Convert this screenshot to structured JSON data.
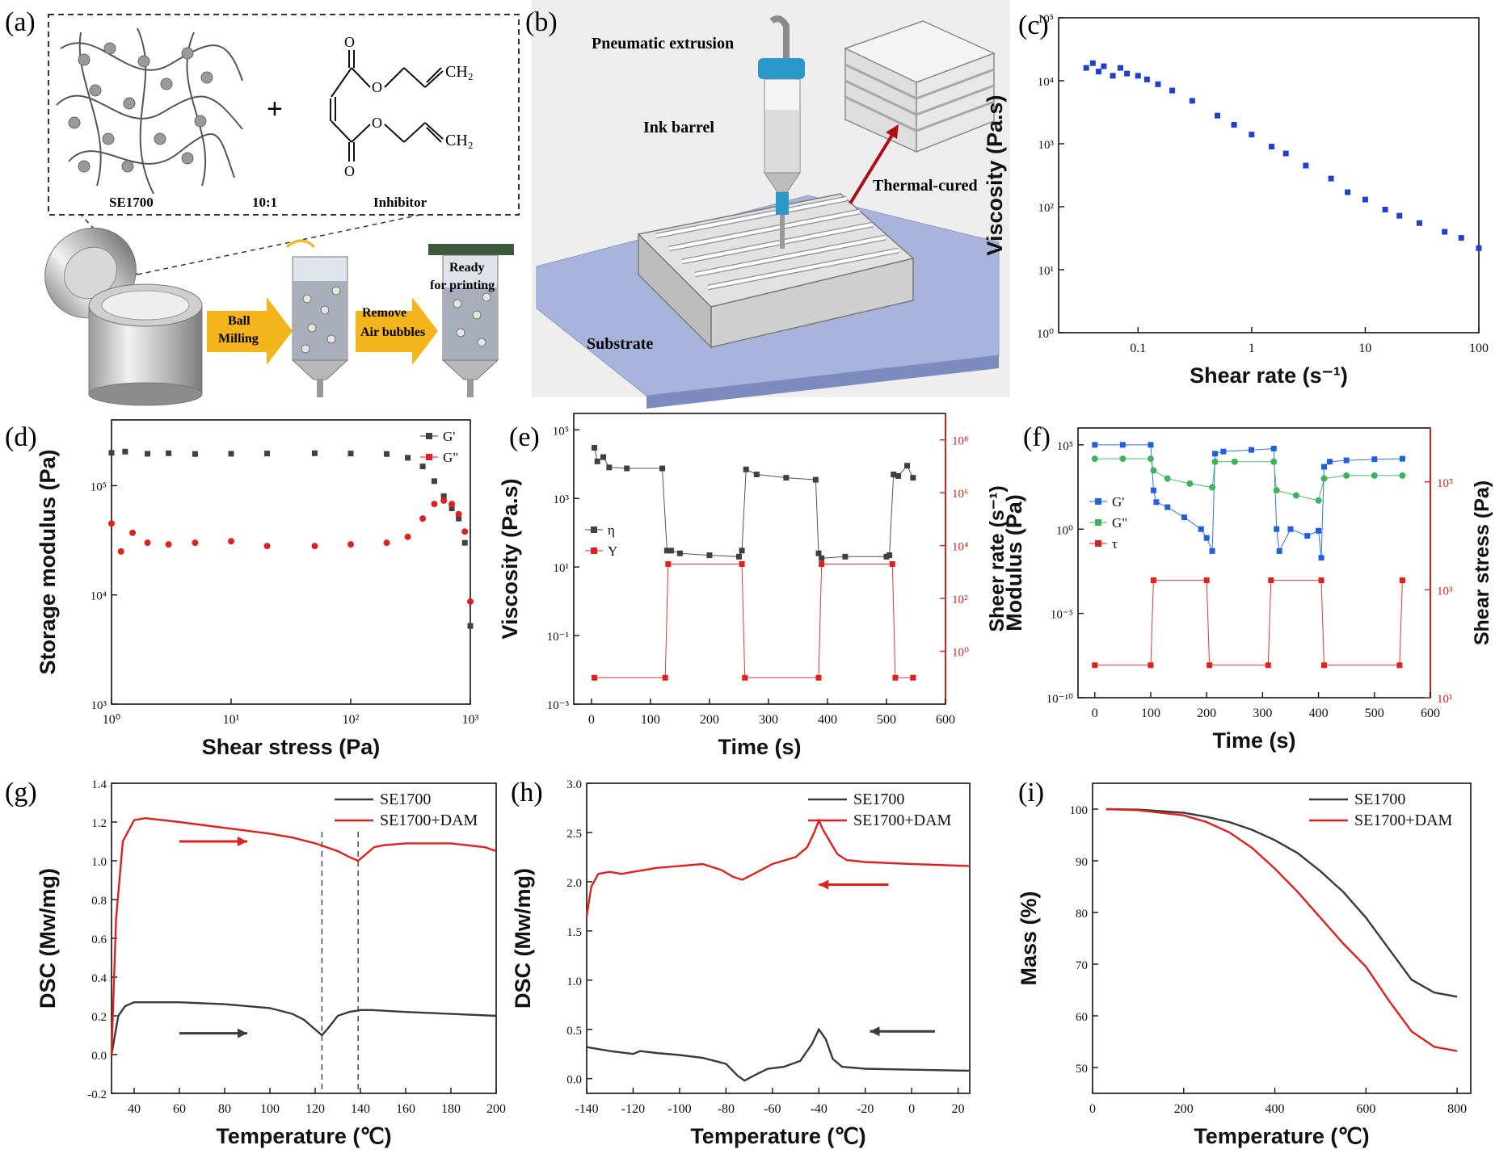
{
  "panels": {
    "a": {
      "letter": "(a)",
      "polymer_label": "SE1700",
      "ratio_label": "10:1",
      "inhibitor_label": "Inhibitor",
      "plus": "+",
      "o1": "O",
      "o2": "O",
      "o3": "O",
      "o4": "O",
      "ch2_top": "CH₂",
      "ch2_bottom": "CH₂",
      "arrow1": [
        "Ball",
        "Milling"
      ],
      "arrow2": [
        "Remove",
        "Air bubbles"
      ],
      "ready": [
        "Ready",
        "for printing"
      ]
    },
    "b": {
      "letter": "(b)",
      "pneumatic": "Pneumatic extrusion",
      "barrel": "Ink barrel",
      "thermal": "Thermal-cured",
      "substrate": "Substrate"
    },
    "c": {
      "letter": "(c)"
    },
    "d": {
      "letter": "(d)"
    },
    "e": {
      "letter": "(e)"
    },
    "f": {
      "letter": "(f)"
    },
    "g": {
      "letter": "(g)"
    },
    "h": {
      "letter": "(h)"
    },
    "i": {
      "letter": "(i)"
    }
  },
  "colors": {
    "black_series": "#404040",
    "red_series": "#e0201c",
    "blue_series": "#1f5fe0",
    "green_series": "#3cb45a",
    "right_axis": "#e0201c"
  },
  "chart_data": [
    {
      "id": "c",
      "type": "scatter",
      "xlabel": "Shear rate (s⁻¹)",
      "ylabel": "Viscosity (Pa.s)",
      "xscale": "log",
      "yscale": "log",
      "xlim": [
        0.02,
        100
      ],
      "ylim": [
        1,
        100000
      ],
      "xticks": [
        0.1,
        1,
        10,
        100
      ],
      "xtick_labels": [
        "0.1",
        "1",
        "10",
        "100"
      ],
      "yticks": [
        1,
        10,
        100,
        1000,
        10000,
        100000
      ],
      "ytick_labels": [
        "10⁰",
        "10¹",
        "10²",
        "10³",
        "10⁴",
        "10⁵"
      ],
      "series": [
        {
          "color": "#1f3fd0",
          "x": [
            0.035,
            0.04,
            0.045,
            0.05,
            0.06,
            0.07,
            0.08,
            0.1,
            0.12,
            0.15,
            0.2,
            0.3,
            0.5,
            0.7,
            1,
            1.5,
            2,
            3,
            5,
            7,
            10,
            15,
            20,
            30,
            50,
            70,
            100
          ],
          "y": [
            16000,
            19000,
            14000,
            17000,
            12000,
            16000,
            13000,
            12000,
            10500,
            8800,
            7000,
            4800,
            2800,
            2000,
            1400,
            900,
            700,
            450,
            280,
            170,
            130,
            90,
            72,
            55,
            40,
            32,
            22
          ]
        }
      ]
    },
    {
      "id": "d",
      "type": "scatter",
      "xlabel": "Shear stress (Pa)",
      "ylabel": "Storage  modulus (Pa)",
      "xscale": "log",
      "yscale": "log",
      "xlim": [
        1,
        1000
      ],
      "ylim": [
        1000,
        400000
      ],
      "xticks": [
        1,
        10,
        100,
        1000
      ],
      "xtick_labels": [
        "10⁰",
        "10¹",
        "10²",
        "10³"
      ],
      "yticks": [
        1000,
        10000,
        100000
      ],
      "ytick_labels": [
        "10³",
        "10⁴",
        "10⁵"
      ],
      "legend": [
        "G'",
        "G\""
      ],
      "legend_position": "top-right",
      "series": [
        {
          "name": "G'",
          "color": "#404040",
          "x": [
            1,
            1.3,
            2,
            3,
            5,
            10,
            20,
            50,
            100,
            200,
            300,
            400,
            500,
            600,
            700,
            800,
            900,
            1000
          ],
          "y": [
            200000,
            205000,
            196000,
            198000,
            195000,
            196000,
            197000,
            198000,
            197000,
            195000,
            180000,
            150000,
            110000,
            80000,
            62000,
            50000,
            30000,
            5200
          ]
        },
        {
          "name": "G\"",
          "color": "#e0201c",
          "x": [
            1,
            1.2,
            1.5,
            2,
            3,
            5,
            10,
            20,
            50,
            100,
            200,
            300,
            400,
            500,
            600,
            700,
            800,
            900,
            1000
          ],
          "y": [
            45000,
            25000,
            37000,
            30000,
            29000,
            30000,
            31000,
            28000,
            28000,
            29000,
            30000,
            34000,
            50000,
            68000,
            73000,
            68000,
            55000,
            38000,
            8700
          ]
        }
      ]
    },
    {
      "id": "e",
      "type": "scatter",
      "xlabel": "Time (s)",
      "ylabel": "Viscosity (Pa.s)",
      "y2label": "Sheer rate (s⁻¹)",
      "xlim": [
        -30,
        600
      ],
      "yscale": "log",
      "ylim": [
        0.001,
        300000
      ],
      "y2scale": "log",
      "y2lim": [
        0.01,
        1000000000
      ],
      "xticks": [
        0,
        100,
        200,
        300,
        400,
        500,
        600
      ],
      "xtick_labels": [
        "0",
        "100",
        "200",
        "300",
        "400",
        "500",
        "600"
      ],
      "yticks": [
        0.001,
        0.1,
        10,
        1000,
        100000
      ],
      "ytick_labels": [
        "10⁻³",
        "10⁻¹",
        "10¹",
        "10³",
        "10⁵"
      ],
      "y2ticks": [
        1,
        100,
        10000,
        1000000,
        100000000
      ],
      "y2tick_labels": [
        "10⁰",
        "10²",
        "10⁴",
        "10⁶",
        "10⁸"
      ],
      "legend": [
        "η",
        "Υ"
      ],
      "legend_position": "middle-left",
      "series": [
        {
          "name": "η",
          "color": "#404040",
          "axis": "left",
          "x": [
            5,
            10,
            20,
            30,
            60,
            120,
            128,
            135,
            150,
            200,
            250,
            255,
            262,
            280,
            330,
            380,
            385,
            390,
            430,
            500,
            505,
            512,
            520,
            535,
            545
          ],
          "y": [
            30000,
            12000,
            16000,
            8000,
            7500,
            7500,
            30,
            30,
            25,
            22,
            20,
            30,
            7000,
            5000,
            4000,
            3500,
            25,
            18,
            20,
            20,
            22,
            5000,
            4500,
            9000,
            4000
          ]
        },
        {
          "name": "Υ",
          "color": "#e0201c",
          "axis": "right",
          "x": [
            5,
            125,
            130,
            255,
            260,
            385,
            390,
            510,
            515,
            545
          ],
          "y": [
            0.1,
            0.1,
            2000,
            2000,
            0.1,
            0.1,
            2000,
            2000,
            0.1,
            0.1
          ]
        }
      ]
    },
    {
      "id": "f",
      "type": "scatter",
      "xlabel": "Time (s)",
      "ylabel": "Modulus (Pa)",
      "y2label": "Shear stress (Pa)",
      "xlim": [
        -30,
        600
      ],
      "yscale": "log",
      "ylim": [
        1e-10,
        1000000.0
      ],
      "y2scale": "log",
      "y2lim": [
        10,
        1000000
      ],
      "xticks": [
        0,
        100,
        200,
        300,
        400,
        500,
        600
      ],
      "xtick_labels": [
        "0",
        "100",
        "200",
        "300",
        "400",
        "500",
        "600"
      ],
      "yticks": [
        1e-10,
        1e-05,
        1,
        100000
      ],
      "ytick_labels": [
        "10⁻¹⁰",
        "10⁻⁵",
        "10⁰",
        "10⁵"
      ],
      "y2ticks": [
        10,
        1000,
        100000
      ],
      "y2tick_labels": [
        "10¹",
        "10³",
        "10⁵"
      ],
      "legend": [
        "G'",
        "G\"",
        "τ"
      ],
      "legend_position": "middle-left",
      "series": [
        {
          "name": "G'",
          "color": "#1f5fe0",
          "axis": "left",
          "x": [
            0,
            50,
            100,
            105,
            110,
            130,
            160,
            190,
            200,
            210,
            215,
            230,
            280,
            320,
            325,
            330,
            350,
            380,
            400,
            405,
            410,
            420,
            450,
            500,
            550
          ],
          "y": [
            100000,
            100000,
            100000,
            200,
            40,
            20,
            5,
            1,
            0.3,
            0.05,
            30000,
            40000,
            50000,
            60000,
            1,
            0.05,
            1,
            0.4,
            0.8,
            0.02,
            5000,
            10000,
            12000,
            14000,
            15000
          ]
        },
        {
          "name": "G\"",
          "color": "#3cb45a",
          "axis": "left",
          "x": [
            0,
            50,
            100,
            105,
            130,
            170,
            210,
            215,
            250,
            320,
            325,
            360,
            400,
            410,
            450,
            500,
            550
          ],
          "y": [
            15000,
            15000,
            15000,
            3000,
            1000,
            500,
            300,
            10000,
            10000,
            10000,
            200,
            100,
            50,
            1000,
            1500,
            1500,
            1500
          ]
        },
        {
          "name": "τ",
          "color": "#e0201c",
          "axis": "right",
          "x": [
            0,
            100,
            105,
            200,
            205,
            310,
            315,
            405,
            410,
            545,
            550
          ],
          "y": [
            40,
            40,
            1500,
            1500,
            40,
            40,
            1500,
            1500,
            40,
            40,
            1500
          ]
        }
      ]
    },
    {
      "id": "g",
      "type": "line",
      "xlabel": "Temperature (℃)",
      "ylabel": "DSC (Mw/mg)",
      "xlim": [
        30,
        200
      ],
      "ylim": [
        -0.2,
        1.4
      ],
      "xticks": [
        40,
        60,
        80,
        100,
        120,
        140,
        160,
        180,
        200
      ],
      "xtick_labels": [
        "40",
        "60",
        "80",
        "100",
        "120",
        "140",
        "160",
        "180",
        "200"
      ],
      "yticks": [
        -0.2,
        0,
        0.2,
        0.4,
        0.6,
        0.8,
        1.0,
        1.2,
        1.4
      ],
      "ytick_labels": [
        "-0.2",
        "0.0",
        "0.2",
        "0.4",
        "0.6",
        "0.8",
        "1.0",
        "1.2",
        "1.4"
      ],
      "legend": [
        "SE1700",
        "SE1700+DAM"
      ],
      "legend_position": "top-right",
      "vlines": [
        123,
        139
      ],
      "series": [
        {
          "name": "SE1700",
          "color": "#3a3a3a",
          "x": [
            30,
            33,
            36,
            40,
            60,
            80,
            100,
            110,
            115,
            120,
            123,
            126,
            130,
            135,
            140,
            145,
            160,
            180,
            200
          ],
          "y": [
            0,
            0.2,
            0.25,
            0.27,
            0.27,
            0.26,
            0.24,
            0.21,
            0.18,
            0.13,
            0.1,
            0.14,
            0.2,
            0.22,
            0.23,
            0.23,
            0.22,
            0.21,
            0.2
          ]
        },
        {
          "name": "SE1700+DAM",
          "color": "#e0201c",
          "x": [
            30,
            32,
            35,
            40,
            45,
            60,
            80,
            100,
            110,
            120,
            130,
            135,
            139,
            142,
            146,
            150,
            160,
            180,
            195,
            200
          ],
          "y": [
            0,
            0.7,
            1.1,
            1.21,
            1.22,
            1.2,
            1.17,
            1.14,
            1.12,
            1.09,
            1.05,
            1.02,
            1.0,
            1.03,
            1.07,
            1.08,
            1.09,
            1.09,
            1.07,
            1.05
          ]
        }
      ],
      "arrows": [
        {
          "color": "#e0201c",
          "x": [
            60,
            90
          ],
          "y": 1.1
        },
        {
          "color": "#3a3a3a",
          "x": [
            60,
            90
          ],
          "y": 0.11
        }
      ]
    },
    {
      "id": "h",
      "type": "line",
      "xlabel": "Temperature (℃)",
      "ylabel": "DSC (Mw/mg)",
      "xlim": [
        -140,
        25
      ],
      "ylim": [
        -0.15,
        3.0
      ],
      "xticks": [
        -140,
        -120,
        -100,
        -80,
        -60,
        -40,
        -20,
        0,
        20
      ],
      "xtick_labels": [
        "-140",
        "-120",
        "-100",
        "-80",
        "-60",
        "-40",
        "-20",
        "0",
        "20"
      ],
      "yticks": [
        0,
        0.5,
        1.0,
        1.5,
        2.0,
        2.5,
        3.0
      ],
      "ytick_labels": [
        "0.0",
        "0.5",
        "1.0",
        "1.5",
        "2.0",
        "2.5",
        "3.0"
      ],
      "legend": [
        "SE1700",
        "SE1700+DAM"
      ],
      "legend_position": "top-right",
      "series": [
        {
          "name": "SE1700",
          "color": "#3a3a3a",
          "x": [
            -140,
            -130,
            -120,
            -117,
            -110,
            -100,
            -90,
            -80,
            -75,
            -72,
            -68,
            -62,
            -55,
            -48,
            -43,
            -40,
            -37,
            -34,
            -30,
            -20,
            0,
            25
          ],
          "y": [
            0.32,
            0.28,
            0.25,
            0.28,
            0.26,
            0.24,
            0.21,
            0.15,
            0.03,
            -0.02,
            0.03,
            0.1,
            0.12,
            0.18,
            0.35,
            0.5,
            0.4,
            0.2,
            0.12,
            0.1,
            0.09,
            0.08
          ]
        },
        {
          "name": "SE1700+DAM",
          "color": "#e0201c",
          "x": [
            -140,
            -138,
            -135,
            -130,
            -125,
            -120,
            -115,
            -110,
            -100,
            -90,
            -82,
            -77,
            -73,
            -68,
            -60,
            -50,
            -45,
            -42,
            -40,
            -38,
            -35,
            -32,
            -28,
            -20,
            0,
            25
          ],
          "y": [
            1.65,
            1.95,
            2.08,
            2.1,
            2.08,
            2.1,
            2.12,
            2.14,
            2.16,
            2.18,
            2.12,
            2.05,
            2.02,
            2.08,
            2.18,
            2.25,
            2.35,
            2.5,
            2.62,
            2.52,
            2.4,
            2.28,
            2.22,
            2.2,
            2.18,
            2.16
          ]
        }
      ],
      "arrows": [
        {
          "color": "#e0201c",
          "x": [
            -10,
            -40
          ],
          "y": 1.97
        },
        {
          "color": "#3a3a3a",
          "x": [
            10,
            -18
          ],
          "y": 0.48
        }
      ]
    },
    {
      "id": "i",
      "type": "line",
      "xlabel": "Temperature (℃)",
      "ylabel": "Mass (%)",
      "xlim": [
        0,
        830
      ],
      "ylim": [
        45,
        105
      ],
      "xticks": [
        0,
        200,
        400,
        600,
        800
      ],
      "xtick_labels": [
        "0",
        "200",
        "400",
        "600",
        "800"
      ],
      "yticks": [
        50,
        60,
        70,
        80,
        90,
        100
      ],
      "ytick_labels": [
        "50",
        "60",
        "70",
        "80",
        "90",
        "100"
      ],
      "legend": [
        "SE1700",
        "SE1700+DAM"
      ],
      "legend_position": "top-right",
      "series": [
        {
          "name": "SE1700",
          "color": "#3a3a3a",
          "x": [
            30,
            100,
            200,
            250,
            300,
            350,
            400,
            450,
            500,
            550,
            600,
            650,
            700,
            750,
            800
          ],
          "y": [
            100,
            99.9,
            99.3,
            98.5,
            97.5,
            96,
            94,
            91.5,
            88,
            84,
            79,
            73,
            67,
            64.5,
            63.7
          ]
        },
        {
          "name": "SE1700+DAM",
          "color": "#e0201c",
          "x": [
            30,
            100,
            200,
            250,
            300,
            350,
            400,
            450,
            500,
            550,
            600,
            650,
            700,
            750,
            800
          ],
          "y": [
            100,
            99.8,
            98.8,
            97.5,
            95.5,
            92.5,
            88.5,
            84,
            79,
            74,
            69.5,
            63,
            57,
            54,
            53.2
          ]
        }
      ]
    }
  ]
}
